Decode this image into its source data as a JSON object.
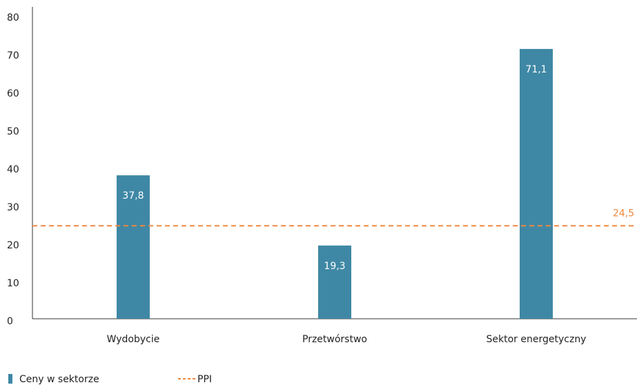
{
  "chart_data": {
    "type": "bar",
    "categories": [
      "Wydobycie",
      "Przetwórstwo",
      "Sektor energetyczny"
    ],
    "series": [
      {
        "name": "Ceny w sektorze",
        "color": "#3f88a5",
        "values": [
          37.8,
          19.3,
          71.1
        ],
        "value_labels": [
          "37,8",
          "19,3",
          "71,1"
        ]
      }
    ],
    "reference": {
      "name": "PPI",
      "color": "#f0883e",
      "value": 24.5,
      "value_label": "24,5"
    },
    "ylim": [
      0,
      80
    ],
    "yticks": [
      0,
      10,
      20,
      30,
      40,
      50,
      60,
      70,
      80
    ],
    "grid": false
  }
}
